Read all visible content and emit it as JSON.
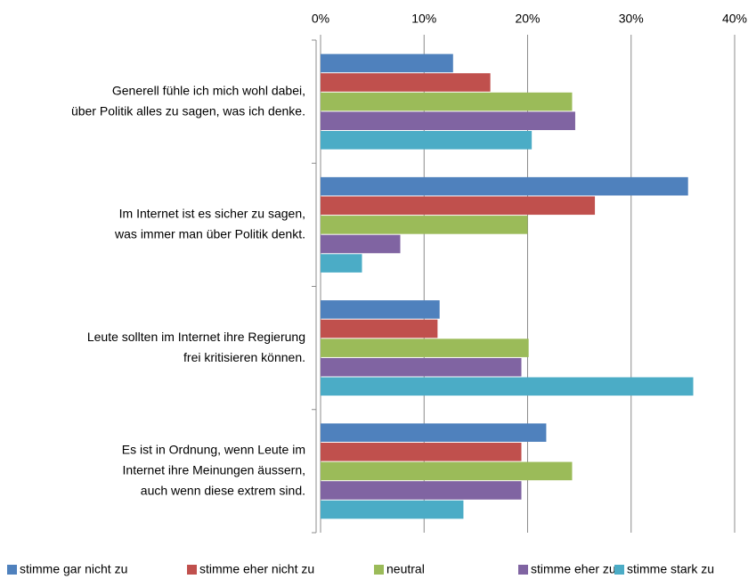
{
  "chart_data": {
    "type": "bar",
    "orientation": "horizontal",
    "categories": [
      [
        "Generell fühle ich mich wohl dabei,",
        "über Politik  alles zu sagen, was ich denke."
      ],
      [
        "Im Internet ist es sicher zu sagen,",
        "was immer man über Politik denkt."
      ],
      [
        "Leute sollten im Internet ihre Regierung",
        "frei kritisieren können."
      ],
      [
        "Es ist in Ordnung, wenn Leute im",
        "Internet ihre Meinungen äussern,",
        "auch wenn diese extrem sind."
      ]
    ],
    "series": [
      {
        "name": "stimme gar nicht zu",
        "color": "#4f81bd",
        "values": [
          12.8,
          35.5,
          11.5,
          21.8
        ]
      },
      {
        "name": "stimme eher nicht zu",
        "color": "#c0504d",
        "values": [
          16.4,
          26.5,
          11.3,
          19.4
        ]
      },
      {
        "name": "neutral",
        "color": "#9bbb59",
        "values": [
          24.3,
          20.0,
          20.1,
          24.3
        ]
      },
      {
        "name": "stimme eher zu",
        "color": "#8064a2",
        "values": [
          24.6,
          7.7,
          19.4,
          19.4
        ]
      },
      {
        "name": "stimme stark zu",
        "color": "#4bacc6",
        "values": [
          20.4,
          4.0,
          36.0,
          13.8
        ]
      }
    ],
    "xlim": [
      0,
      40
    ],
    "xticks": [
      {
        "value": 0,
        "label": "0%"
      },
      {
        "value": 10,
        "label": "10%"
      },
      {
        "value": 20,
        "label": "20%"
      },
      {
        "value": 30,
        "label": "30%"
      },
      {
        "value": 40,
        "label": "40%"
      }
    ],
    "grid": true,
    "legend": "bottom"
  }
}
